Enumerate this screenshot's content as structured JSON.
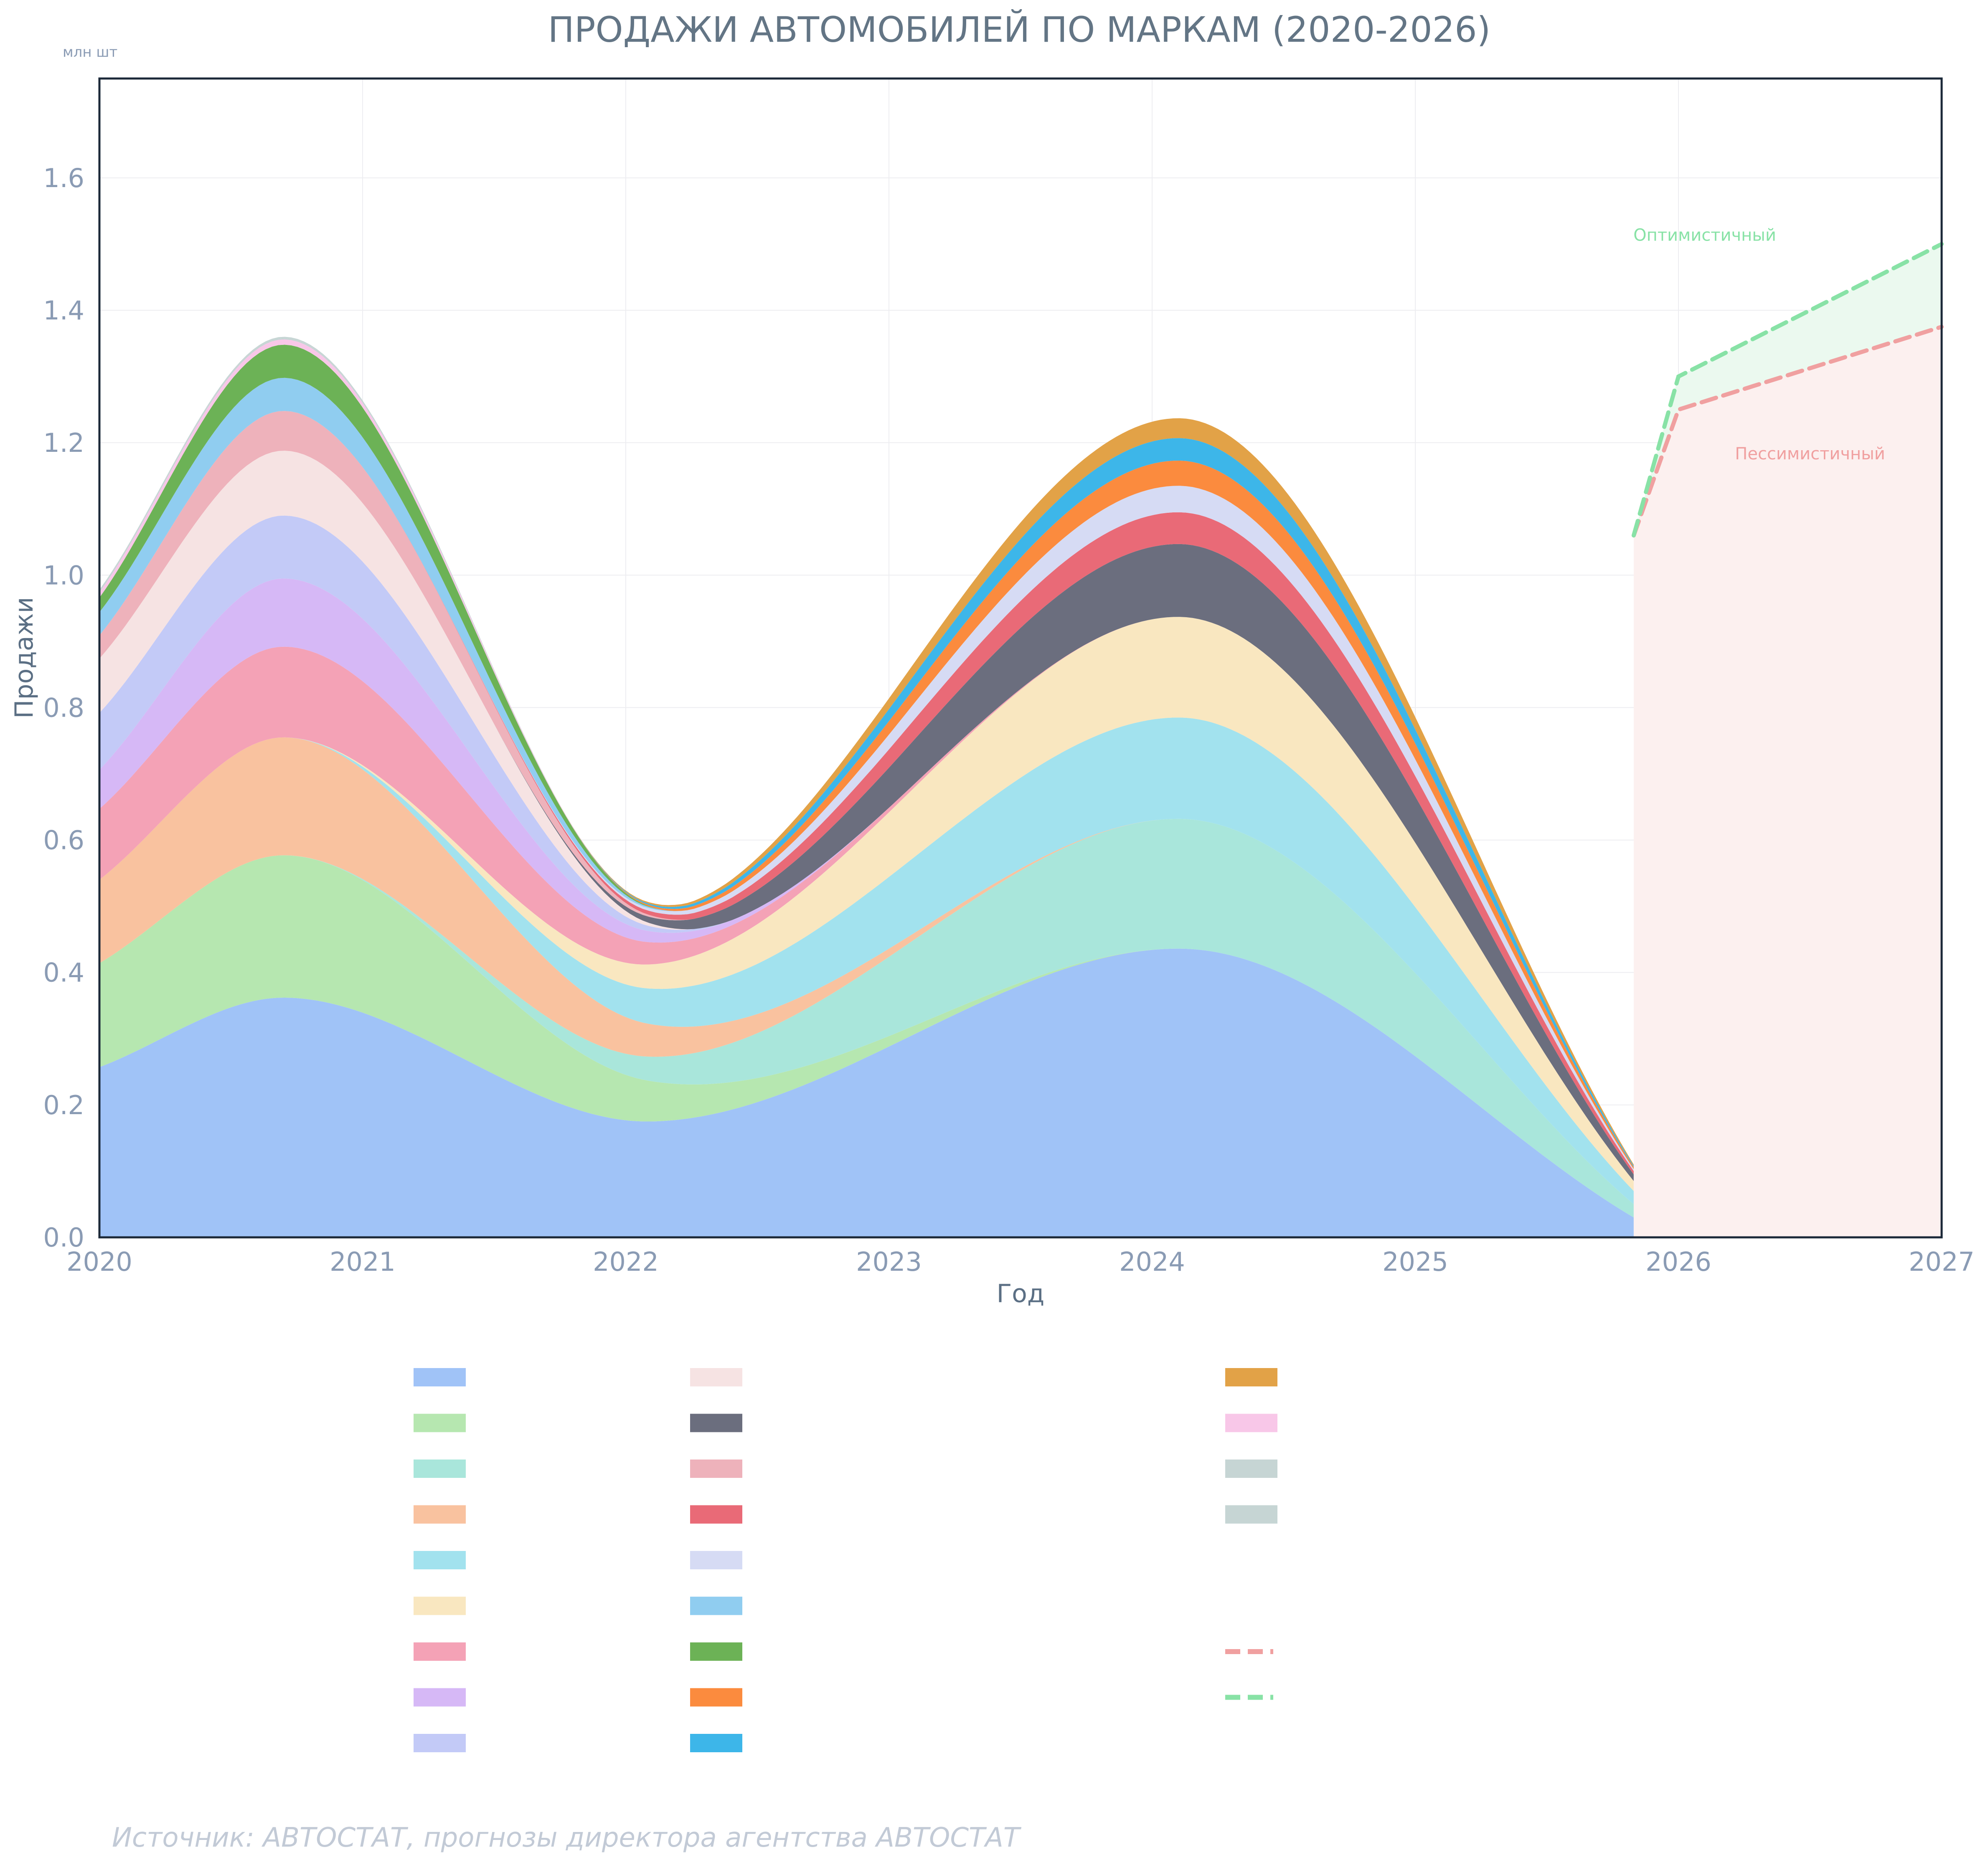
{
  "chart_data": {
    "type": "area",
    "title": "ПРОДАЖИ АВТОМОБИЛЕЙ ПО МАРКАМ (2020-2026)",
    "xlabel": "Год",
    "ylabel": "Продажи",
    "unit_label": "млн шт",
    "xlim": [
      2020,
      2027
    ],
    "ylim": [
      0,
      1.75
    ],
    "xticks": [
      "2020",
      "2021",
      "2022",
      "2023",
      "2024",
      "2025",
      "2026",
      "2027"
    ],
    "yticks": [
      "0.0",
      "0.2",
      "0.4",
      "0.6",
      "0.8",
      "1.0",
      "1.2",
      "1.4",
      "1.6"
    ],
    "grid": true,
    "x": [
      2020.0,
      2020.7,
      2022.08,
      2024.1,
      2025.83
    ],
    "series": [
      {
        "color": "#a0c3f7",
        "values": [
          0.257,
          0.362,
          0.175,
          0.436,
          0.03
        ]
      },
      {
        "color": "#b6e7b0",
        "values": [
          0.157,
          0.215,
          0.062,
          0.0,
          0.0
        ]
      },
      {
        "color": "#a9e6db",
        "values": [
          0.0,
          0.0,
          0.036,
          0.196,
          0.02
        ]
      },
      {
        "color": "#f9c29f",
        "values": [
          0.126,
          0.178,
          0.05,
          0.0,
          0.0
        ]
      },
      {
        "color": "#a2e2ee",
        "values": [
          0.0,
          0.0,
          0.053,
          0.153,
          0.02
        ]
      },
      {
        "color": "#f9e7c0",
        "values": [
          0.0,
          0.0,
          0.036,
          0.152,
          0.015
        ]
      },
      {
        "color": "#f4a2b6",
        "values": [
          0.107,
          0.137,
          0.034,
          0.0,
          0.0
        ]
      },
      {
        "color": "#d6b8f6",
        "values": [
          0.059,
          0.103,
          0.017,
          0.0,
          0.0
        ]
      },
      {
        "color": "#c3caf7",
        "values": [
          0.086,
          0.095,
          0.008,
          0.0,
          0.0
        ]
      },
      {
        "color": "#f6e3e3",
        "values": [
          0.082,
          0.098,
          0.005,
          0.0,
          0.0
        ]
      },
      {
        "color": "#6b6e7e",
        "values": [
          0.0,
          0.0,
          0.009,
          0.11,
          0.01
        ]
      },
      {
        "color": "#eeb2bb",
        "values": [
          0.035,
          0.06,
          0.003,
          0.0,
          0.0
        ]
      },
      {
        "color": "#e96a77",
        "values": [
          0.0,
          0.0,
          0.006,
          0.048,
          0.005
        ]
      },
      {
        "color": "#d6dbf4",
        "values": [
          0.0,
          0.0,
          0.004,
          0.04,
          0.003
        ]
      },
      {
        "color": "#90cdf0",
        "values": [
          0.035,
          0.05,
          0.002,
          0.0,
          0.0
        ]
      },
      {
        "color": "#6cb256",
        "values": [
          0.022,
          0.05,
          0.001,
          0.0,
          0.0
        ]
      },
      {
        "color": "#fb8b3e",
        "values": [
          0.0,
          0.0,
          0.002,
          0.038,
          0.003
        ]
      },
      {
        "color": "#3db6e9",
        "values": [
          0.0,
          0.0,
          0.002,
          0.034,
          0.002
        ]
      },
      {
        "color": "#e2a247",
        "values": [
          0.0,
          0.0,
          0.002,
          0.03,
          0.002
        ]
      },
      {
        "color": "#f8c7e8",
        "values": [
          0.008,
          0.008,
          0.0,
          0.0,
          0.0
        ]
      },
      {
        "color": "#c6d5d4",
        "values": [
          0.002,
          0.002,
          0.0,
          0.0,
          0.0
        ]
      },
      {
        "color": "#c6d5d4",
        "values": [
          0.002,
          0.002,
          0.0,
          0.0,
          0.0
        ]
      }
    ],
    "forecast": [
      {
        "name": "Пессимистичный",
        "color": "#f0a0a0",
        "x": [
          2025.83,
          2026.0,
          2027.0
        ],
        "values": [
          1.06,
          1.25,
          1.375
        ]
      },
      {
        "name": "Оптимистичный",
        "color": "#88e2a6",
        "x": [
          2025.83,
          2026.0,
          2027.0
        ],
        "values": [
          1.06,
          1.3,
          1.5
        ]
      }
    ],
    "annotation": "Источник: АВТОСТАТ, прогнозы директора агентства АВТОСТАТ"
  }
}
